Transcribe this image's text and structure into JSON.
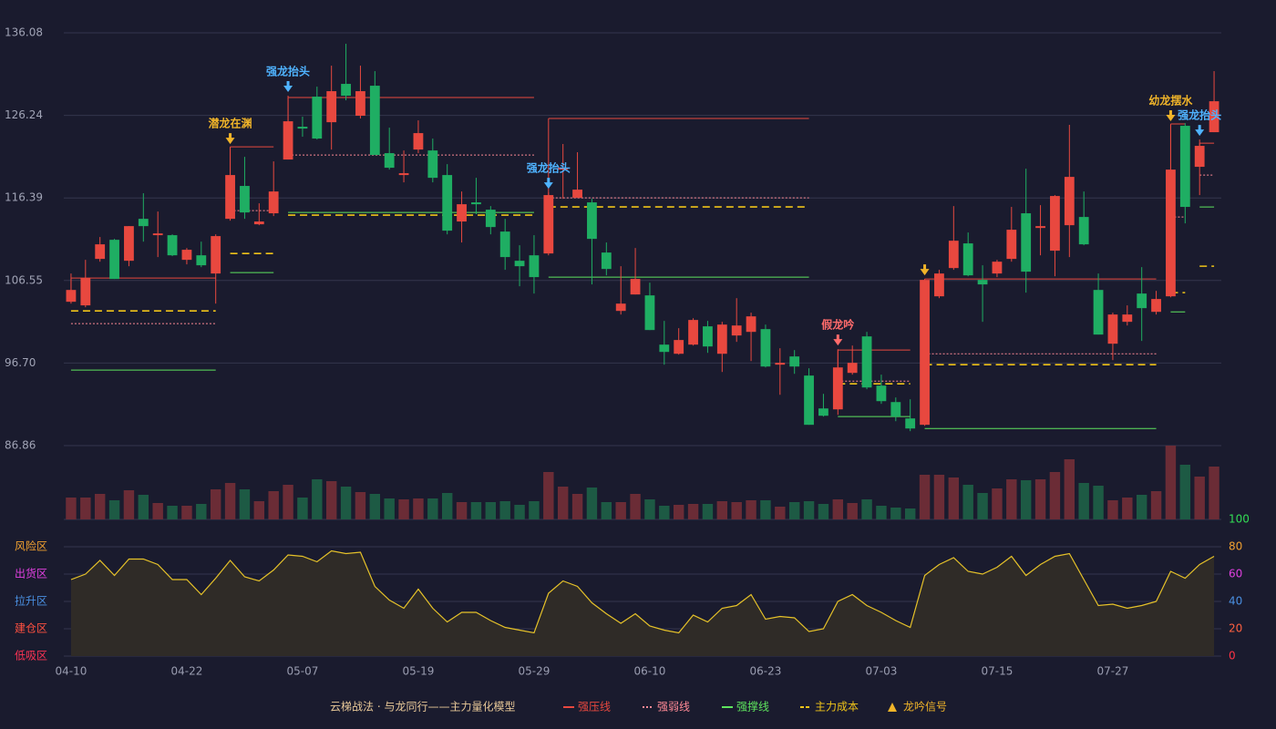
{
  "chart_data": {
    "type": "candlestick",
    "categories": [
      "04-10",
      null,
      null,
      null,
      null,
      null,
      null,
      null,
      "04-22",
      null,
      null,
      null,
      null,
      null,
      null,
      null,
      "05-07",
      null,
      null,
      null,
      null,
      null,
      null,
      null,
      "05-19",
      null,
      null,
      null,
      null,
      null,
      null,
      null,
      "05-29",
      null,
      null,
      null,
      null,
      null,
      null,
      null,
      "06-10",
      null,
      null,
      null,
      null,
      null,
      null,
      null,
      "06-23",
      null,
      null,
      null,
      null,
      null,
      null,
      null,
      "07-03",
      null,
      null,
      null,
      null,
      null,
      null,
      null,
      "07-15",
      null,
      null,
      null,
      null,
      null,
      null,
      null,
      "07-27",
      null,
      null,
      null,
      null,
      null,
      null,
      null
    ],
    "open": [
      104.01,
      103.58,
      109.12,
      111.4,
      108.9,
      113.9,
      111.95,
      111.95,
      109.01,
      109.55,
      107.38,
      113.9,
      117.82,
      113.25,
      114.56,
      120.97,
      124.88,
      128.47,
      125.42,
      129.99,
      126.19,
      129.77,
      121.73,
      119.12,
      122.16,
      122.05,
      119.12,
      113.58,
      115.86,
      114.99,
      112.38,
      108.9,
      109.55,
      109.77,
      119.77,
      116.4,
      115.86,
      109.88,
      102.92,
      104.88,
      104.77,
      98.9,
      97.81,
      98.9,
      101.08,
      97.81,
      99.99,
      100.42,
      100.75,
      96.51,
      97.49,
      95.21,
      91.29,
      91.18,
      95.53,
      99.88,
      94.01,
      92.05,
      90.1,
      89.34,
      104.66,
      108.03,
      110.97,
      106.62,
      107.38,
      109.12,
      114.56,
      112.81,
      110.1,
      113.14,
      114.12,
      105.42,
      99.01,
      101.62,
      104.99,
      102.81,
      104.66,
      124.99,
      120.1,
      124.23
    ],
    "high": [
      107.38,
      109.01,
      111.73,
      111.51,
      113.03,
      116.95,
      114.77,
      112.05,
      110.42,
      111.18,
      112.05,
      122.38,
      121.29,
      115.75,
      120.75,
      128.58,
      126.08,
      129.66,
      132.16,
      134.77,
      132.16,
      131.51,
      124.77,
      122.05,
      125.64,
      123.47,
      120.42,
      117.16,
      118.79,
      115.42,
      113.9,
      110.75,
      111.95,
      117.05,
      122.82,
      121.84,
      116.29,
      111.08,
      108.25,
      110.42,
      106.29,
      101.73,
      100.86,
      102.05,
      101.73,
      101.62,
      104.44,
      102.71,
      101.29,
      98.47,
      98.25,
      96.08,
      93.03,
      98.36,
      98.79,
      100.42,
      95.32,
      92.6,
      92.38,
      106.73,
      107.82,
      115.42,
      112.27,
      108.36,
      109.01,
      115.32,
      119.88,
      115.53,
      116.73,
      125.1,
      117.16,
      107.38,
      102.71,
      103.58,
      108.14,
      105.31,
      125.1,
      125.31,
      123.36,
      131.51
    ],
    "low": [
      103.79,
      103.36,
      108.79,
      106.73,
      108.25,
      111.18,
      109.34,
      109.45,
      108.47,
      108.14,
      103.79,
      113.68,
      113.9,
      113.14,
      114.23,
      120.97,
      123.69,
      123.36,
      122.16,
      128.03,
      125.86,
      121.51,
      119.77,
      118.25,
      121.73,
      118.25,
      112.05,
      111.08,
      114.45,
      112.05,
      107.82,
      105.86,
      104.99,
      109.55,
      116.29,
      116.4,
      106.08,
      107.16,
      102.49,
      104.88,
      100.64,
      96.51,
      97.71,
      98.79,
      97.92,
      95.64,
      99.23,
      96.94,
      96.18,
      92.92,
      95.42,
      89.34,
      90.32,
      90.53,
      95.32,
      93.58,
      91.84,
      89.77,
      88.58,
      89.23,
      104.44,
      107.82,
      107.05,
      101.62,
      106.95,
      108.79,
      105.1,
      109.55,
      107.05,
      109.34,
      110.75,
      100.1,
      97.05,
      101.18,
      99.34,
      102.49,
      104.55,
      113.36,
      116.73,
      124.23
    ],
    "close": [
      105.42,
      106.84,
      110.86,
      106.73,
      113.03,
      113.03,
      112.16,
      109.55,
      110.21,
      108.36,
      111.84,
      119.12,
      114.66,
      113.58,
      117.16,
      125.53,
      124.66,
      123.47,
      129.12,
      128.58,
      129.12,
      121.51,
      119.99,
      119.34,
      124.12,
      118.79,
      112.49,
      115.64,
      115.64,
      112.92,
      109.34,
      108.25,
      106.95,
      116.73,
      119.99,
      117.38,
      111.51,
      107.92,
      103.79,
      106.73,
      100.64,
      98.03,
      99.45,
      101.84,
      98.68,
      101.29,
      101.18,
      102.27,
      96.29,
      96.73,
      96.29,
      89.34,
      90.42,
      96.18,
      96.73,
      93.79,
      92.16,
      90.32,
      88.9,
      106.62,
      107.38,
      111.29,
      107.16,
      106.08,
      108.79,
      112.6,
      107.6,
      113.03,
      116.62,
      118.9,
      110.86,
      100.1,
      102.49,
      102.49,
      103.25,
      104.34,
      119.77,
      115.32,
      122.6,
      127.92
    ],
    "up_color": "#e8483f",
    "down_color": "#1fae63",
    "volume": [
      24,
      24,
      28,
      21,
      32,
      27,
      18,
      15,
      15,
      17,
      33,
      40,
      33,
      20,
      31,
      38,
      24,
      44,
      42,
      36,
      30,
      28,
      23,
      22,
      23,
      23,
      29,
      19,
      19,
      19,
      20,
      16,
      20,
      52,
      36,
      28,
      35,
      19,
      19,
      28,
      22,
      15,
      16,
      17,
      17,
      20,
      19,
      21,
      21,
      14,
      19,
      20,
      17,
      22,
      18,
      22,
      15,
      13,
      12,
      49,
      49,
      46,
      38,
      29,
      34,
      44,
      43,
      44,
      52,
      66,
      40,
      37,
      21,
      24,
      27,
      31,
      81,
      60,
      47,
      58
    ],
    "volume_up_color": "#6b2c36",
    "volume_down_color": "#1d5a44",
    "ylim": [
      86.86,
      136.08
    ],
    "yticks": [
      86.86,
      {
        "value": 96.7,
        "label": "96.70"
      },
      106.55,
      116.39,
      126.24,
      136.08
    ],
    "grid": true,
    "levels": [
      {
        "start": 0,
        "end": 10,
        "resistance": 106.84,
        "pivot": 101.4,
        "cost": 102.92,
        "support": 95.86
      },
      {
        "start": 11,
        "end": 14,
        "resistance": 122.49,
        "pivot": 114.88,
        "cost": 109.77,
        "support": 107.49
      },
      {
        "start": 15,
        "end": 32,
        "resistance": 128.36,
        "pivot": 121.51,
        "cost": 114.34,
        "support": 114.66
      },
      {
        "start": 33,
        "end": 51,
        "resistance": 125.86,
        "pivot": 116.4,
        "cost": 115.32,
        "support": 106.95
      },
      {
        "start": 53,
        "end": 58,
        "resistance": 98.25,
        "pivot": 94.55,
        "cost": 94.23,
        "support": 90.32
      },
      {
        "start": 59,
        "end": 75,
        "resistance": 106.73,
        "pivot": 97.81,
        "cost": 96.51,
        "support": 88.9
      },
      {
        "start": 76,
        "end": 77,
        "resistance": 125.21,
        "pivot": 114.12,
        "cost": 105.1,
        "support": 102.81
      },
      {
        "start": 78,
        "end": 79,
        "resistance": 122.92,
        "pivot": 119.12,
        "cost": 108.25,
        "support": 115.32
      }
    ],
    "signals": [
      {
        "index": 11,
        "label": "潜龙在渊",
        "color": "#f0b429"
      },
      {
        "index": 15,
        "label": "强龙抬头",
        "color": "#4fb3ff"
      },
      {
        "index": 33,
        "label": "强龙抬头",
        "color": "#4fb3ff"
      },
      {
        "index": 53,
        "label": "假龙吟",
        "color": "#ff6b6b"
      },
      {
        "index": 59,
        "color": "#f0b429"
      },
      {
        "index": 76,
        "label": "幼龙摆水",
        "color": "#f0b429"
      },
      {
        "index": 78,
        "label": "强龙抬头",
        "color": "#4fb3ff"
      }
    ],
    "oscillator": {
      "values": [
        56,
        60,
        70,
        59,
        71,
        71,
        67,
        56,
        56,
        45,
        57,
        70,
        58,
        55,
        63,
        74,
        73,
        69,
        77,
        75,
        76,
        51,
        41,
        35,
        49,
        35,
        25,
        32,
        32,
        26,
        21,
        19,
        17,
        46,
        55,
        51,
        39,
        31,
        24,
        31,
        22,
        19,
        17,
        30,
        25,
        35,
        37,
        45,
        27,
        29,
        28,
        18,
        20,
        40,
        45,
        37,
        32,
        26,
        21,
        59,
        67,
        72,
        62,
        60,
        65,
        73,
        59,
        67,
        73,
        75,
        56,
        37,
        38,
        35,
        37,
        40,
        62,
        57,
        67,
        73
      ],
      "color": "#e6c229",
      "fill": "#2f2b27",
      "ylim": [
        0,
        100
      ],
      "yticks": [
        0,
        20,
        40,
        60,
        80,
        100
      ],
      "ytick_colors": [
        "#ff3344",
        "#ff6040",
        "#4a90e2",
        "#e040e0",
        "#f0a030",
        "#33dd55"
      ],
      "zones": [
        {
          "label": "风险区",
          "value": 80,
          "color": "#f0a030"
        },
        {
          "label": "出货区",
          "value": 60,
          "color": "#e040e0"
        },
        {
          "label": "拉升区",
          "value": 40,
          "color": "#4a90e2"
        },
        {
          "label": "建仓区",
          "value": 20,
          "color": "#ff5040"
        },
        {
          "label": "低吸区",
          "value": 0,
          "color": "#ff3355"
        }
      ]
    },
    "legend_title": "云梯战法 · 与龙同行——主力量化模型",
    "legend_title_color": "#e8c898",
    "legend": [
      {
        "name": "强压线",
        "key": "resistance",
        "color": "#e8483f",
        "style": "solid"
      },
      {
        "name": "强弱线",
        "key": "pivot",
        "color": "#ff8a96",
        "style": "dotted"
      },
      {
        "name": "强撑线",
        "key": "support",
        "color": "#5ee45e",
        "style": "solid"
      },
      {
        "name": "主力成本",
        "key": "cost",
        "color": "#f0c419",
        "style": "dashed"
      },
      {
        "name": "龙吟信号",
        "color": "#f0b429",
        "style": "triangle"
      }
    ]
  }
}
